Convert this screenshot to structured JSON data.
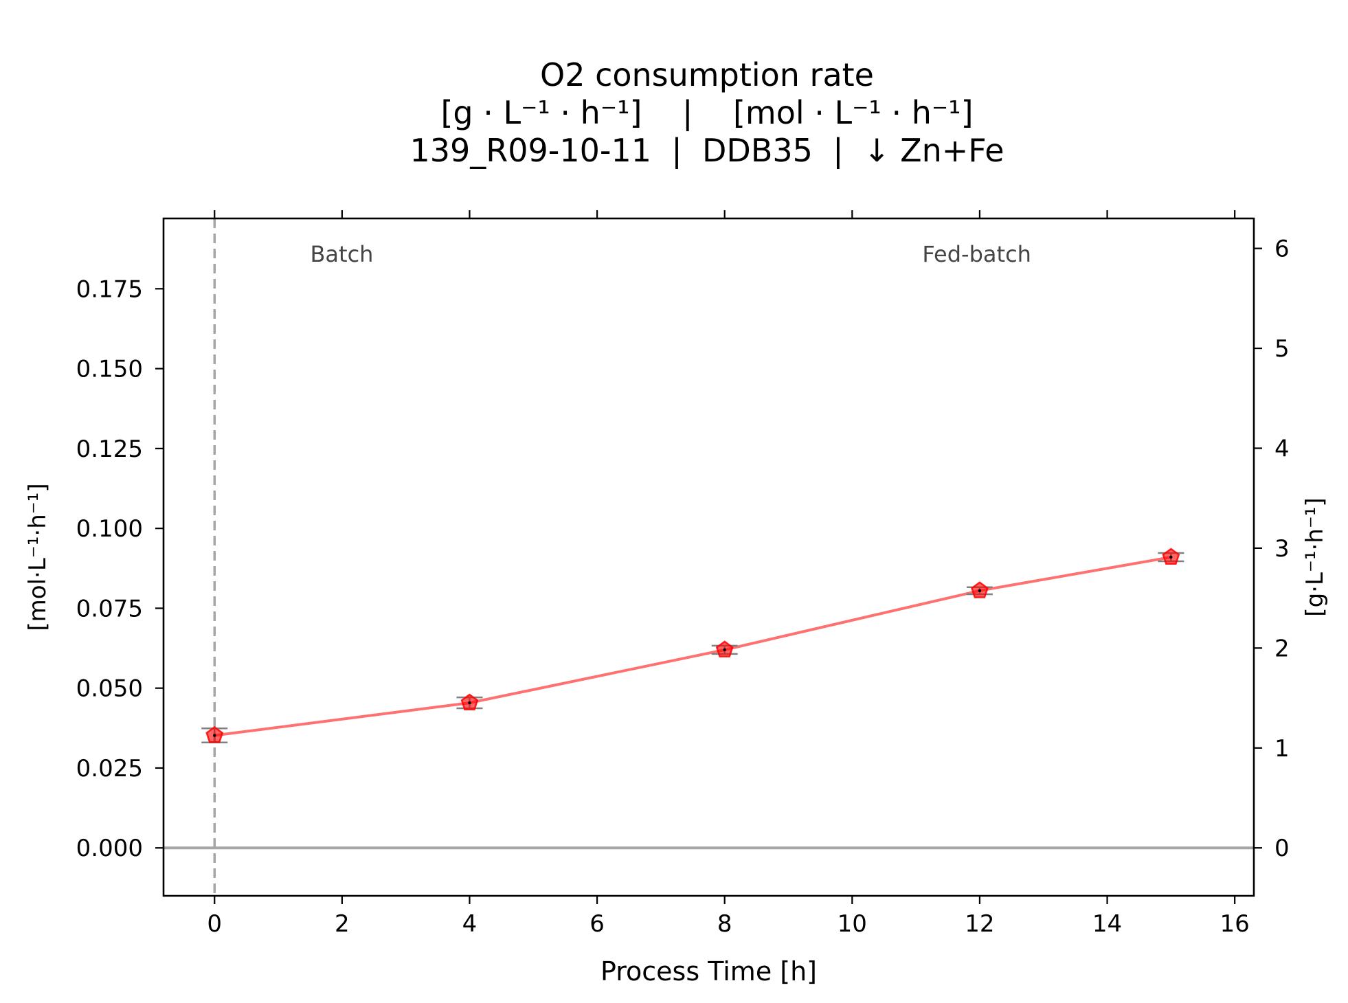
{
  "chart_data": {
    "type": "scatter",
    "title_lines": [
      "O2 consumption rate",
      "[g · L⁻¹ · h⁻¹]    |    [mol · L⁻¹ · h⁻¹]",
      "139_R09-10-11  |  DDB35  |  ↓ Zn+Fe"
    ],
    "xlabel": "Process Time [h]",
    "ylabel_left": "[mol·L⁻¹·h⁻¹]",
    "ylabel_right": "[g·L⁻¹·h⁻¹]",
    "xlim": [
      -0.8,
      16.3
    ],
    "ylim_left": [
      -0.015,
      0.197
    ],
    "ylim_right": [
      -0.48,
      6.3
    ],
    "x_ticks": [
      0,
      2,
      4,
      6,
      8,
      10,
      12,
      14,
      16
    ],
    "x_tick_labels": [
      "0",
      "2",
      "4",
      "6",
      "8",
      "10",
      "12",
      "14",
      "16"
    ],
    "y_left_ticks": [
      0.0,
      0.025,
      0.05,
      0.075,
      0.1,
      0.125,
      0.15,
      0.175
    ],
    "y_left_tick_labels": [
      "0.000",
      "0.025",
      "0.050",
      "0.075",
      "0.100",
      "0.125",
      "0.150",
      "0.175"
    ],
    "y_right_ticks": [
      0,
      1,
      2,
      3,
      4,
      5,
      6
    ],
    "y_right_tick_labels": [
      "0",
      "1",
      "2",
      "3",
      "4",
      "5",
      "6"
    ],
    "series": [
      {
        "x": [
          0,
          4,
          8,
          12,
          15
        ],
        "y": [
          0.0352,
          0.0454,
          0.062,
          0.0805,
          0.091
        ],
        "yerr": [
          0.0022,
          0.0017,
          0.0013,
          0.0011,
          0.0013
        ],
        "color": "#ff0000",
        "line_color": "#ff7070",
        "marker": "pentagon"
      }
    ],
    "annotations": [
      {
        "text": "Batch",
        "x": 1.5,
        "y": 0.1835
      },
      {
        "text": "Fed-batch",
        "x": 11.1,
        "y": 0.1835
      }
    ],
    "vline": {
      "x": 0,
      "style": "dashed",
      "color": "#a6a6a6"
    },
    "hline": {
      "y": 0,
      "color": "#a6a6a6"
    },
    "grid": false
  }
}
